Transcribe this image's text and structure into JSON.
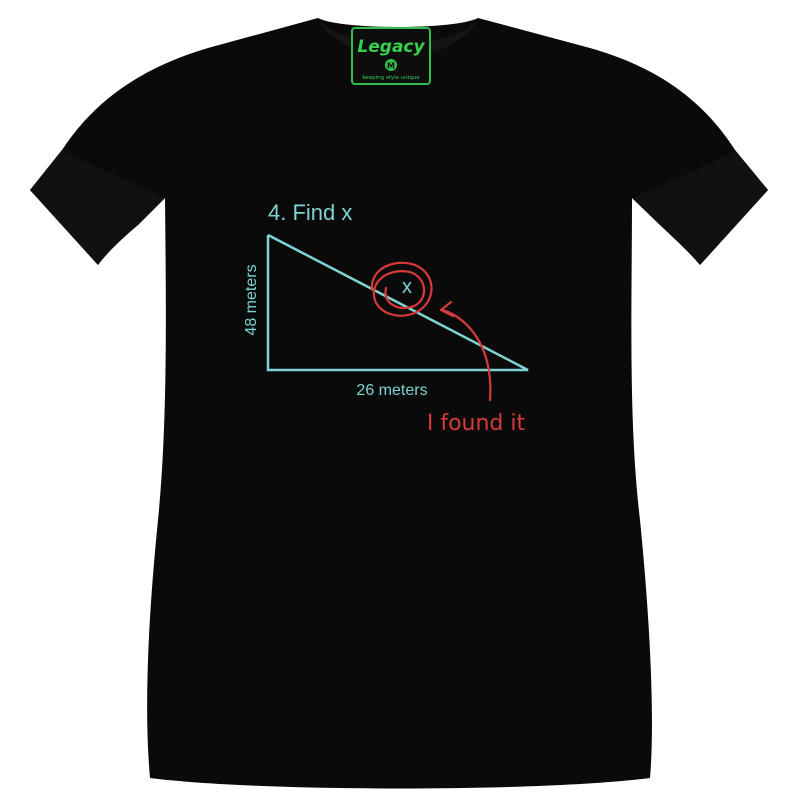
{
  "label": {
    "brand": "Legacy",
    "badge": "M",
    "tagline": "keeping style unique",
    "background_color": "#0d0d0d",
    "border_color": "#2fbf4a",
    "text_color": "#35d24e"
  },
  "print": {
    "heading": "4. Find x",
    "side_label_vertical": "48 meters",
    "side_label_horizontal": "26 meters",
    "x_mark": "x",
    "annotation": "I found it",
    "line_color": "#7fd3d3",
    "annotation_color": "#d63a3a"
  },
  "shirt": {
    "color": "#0a0a0a"
  }
}
